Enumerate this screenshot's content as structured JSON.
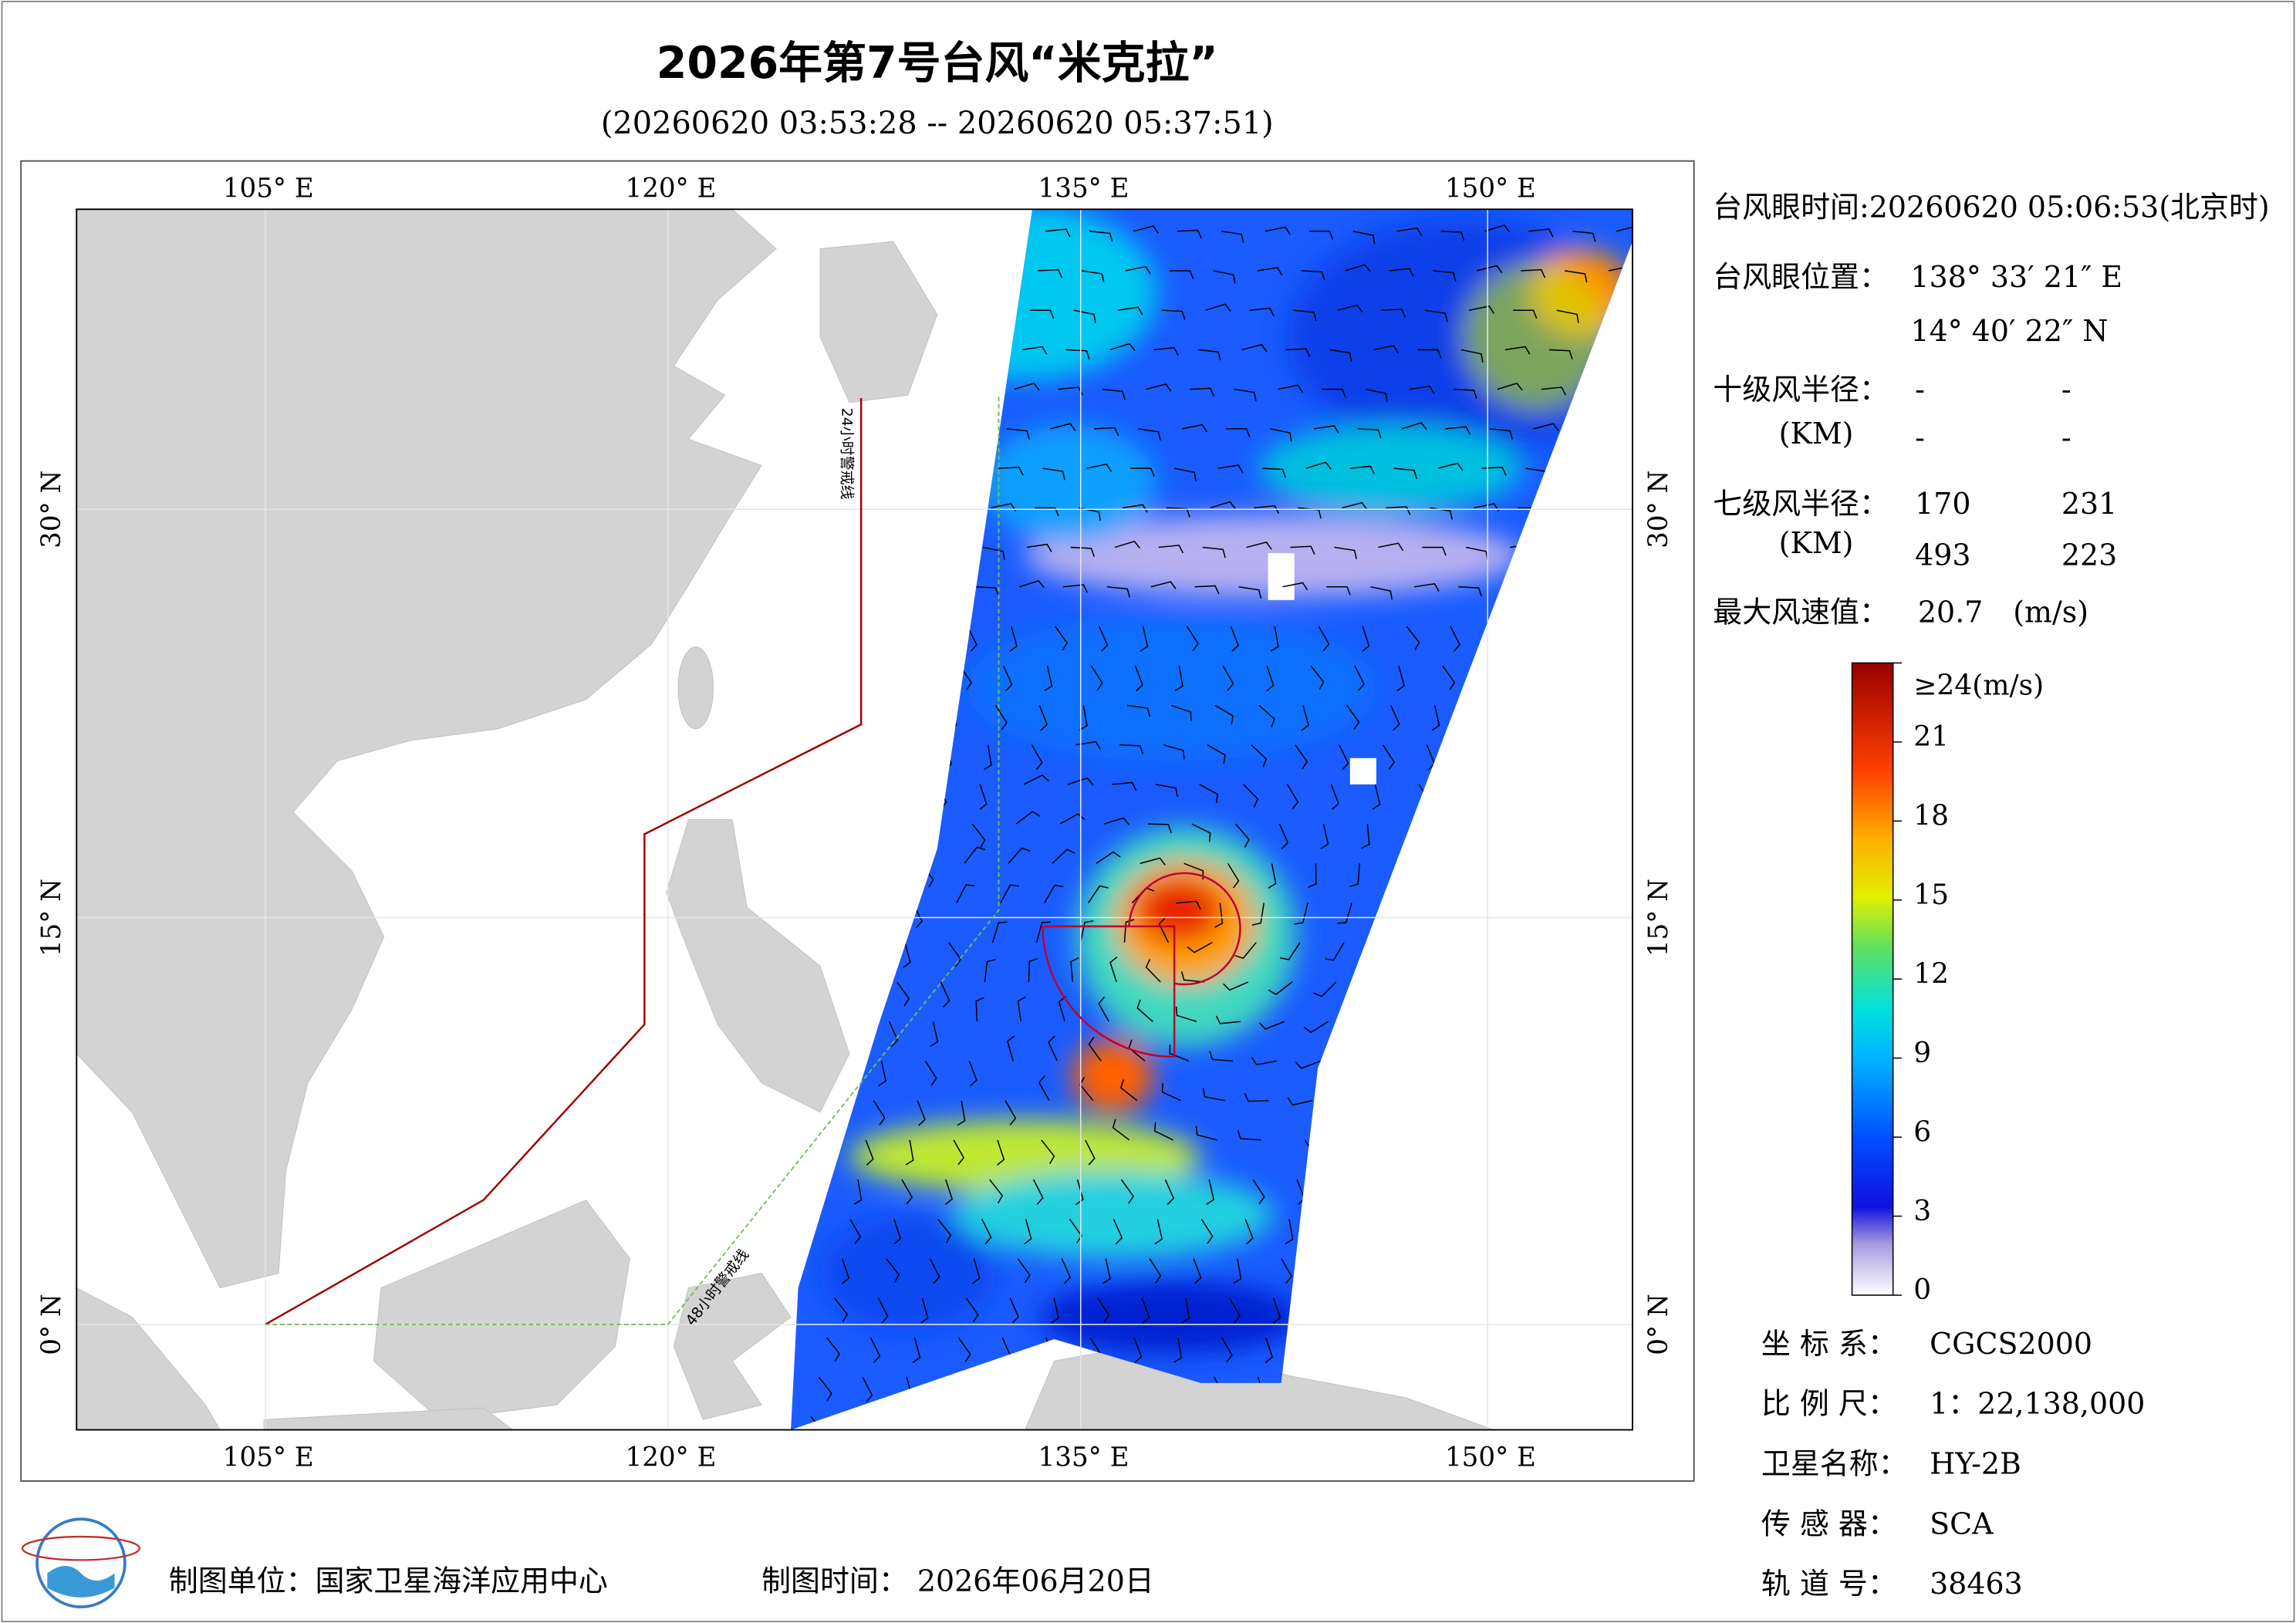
{
  "header": {
    "title": "2026年第7号台风“米克拉”",
    "subtitle": "(20260620 03:53:28 -- 20260620 05:37:51)"
  },
  "map": {
    "lon_labels": [
      "105° E",
      "120° E",
      "135° E",
      "150° E"
    ],
    "lat_labels": [
      "30° N",
      "15° N",
      "0° N"
    ],
    "warning_24h": "24小时警戒线",
    "warning_48h": "48小时警戒线"
  },
  "info": {
    "eye_time_label": "台风眼时间:",
    "eye_time": "20260620 05:06:53(北京时)",
    "eye_position_label": "台风眼位置：",
    "eye_lon": "138° 33′ 21″ E",
    "eye_lat": "14° 40′ 22″ N",
    "r10_label": "十级风半径：",
    "r10_unit": "(KM)",
    "r10": [
      "-",
      "-",
      "-",
      "-"
    ],
    "r7_label": "七级风半径：",
    "r7_unit": "(KM)",
    "r7": [
      170,
      231,
      493,
      223
    ],
    "max_wind_label": "最大风速值：",
    "max_wind": 20.7,
    "max_wind_unit": "(m/s)"
  },
  "colorbar": {
    "ticks": [
      0,
      3,
      6,
      9,
      12,
      15,
      18,
      21,
      {
        "value": 24,
        "label": "≥24(m/s)"
      }
    ],
    "range": [
      0,
      24
    ]
  },
  "footer": {
    "producer": "制图单位：国家卫星海洋应用中心",
    "date": "制图时间： 2026年06月20日",
    "meta": [
      {
        "label": "坐 标 系：",
        "value": "CGCS2000"
      },
      {
        "label": "比 例 尺：",
        "value": "1：22,138,000"
      },
      {
        "label": "卫星名称：",
        "value": "HY-2B"
      },
      {
        "label": "传 感 器：",
        "value": "SCA"
      },
      {
        "label": "轨 道 号：",
        "value": "38463"
      }
    ]
  }
}
